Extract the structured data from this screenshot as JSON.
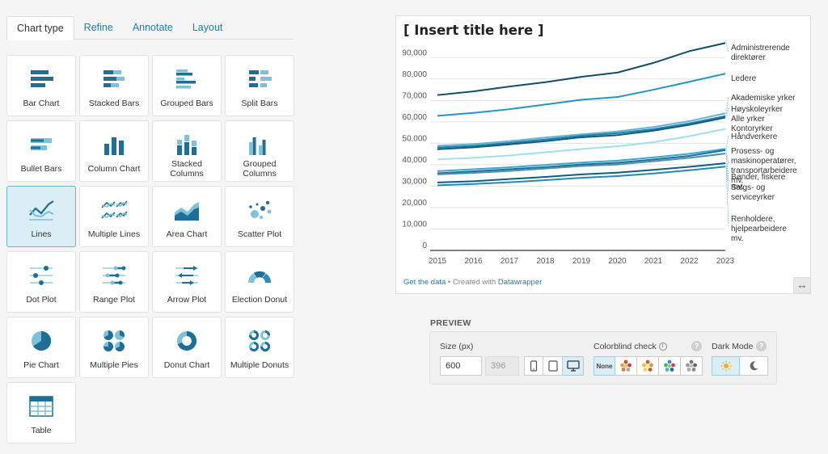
{
  "tabs": [
    {
      "label": "Chart type",
      "active": true
    },
    {
      "label": "Refine",
      "active": false
    },
    {
      "label": "Annotate",
      "active": false
    },
    {
      "label": "Layout",
      "active": false
    }
  ],
  "chart_types": [
    {
      "label": "Bar Chart",
      "icon": "bar-chart-icon"
    },
    {
      "label": "Stacked Bars",
      "icon": "stacked-bars-icon"
    },
    {
      "label": "Grouped Bars",
      "icon": "grouped-bars-icon"
    },
    {
      "label": "Split Bars",
      "icon": "split-bars-icon"
    },
    {
      "label": "Bullet Bars",
      "icon": "bullet-bars-icon"
    },
    {
      "label": "Column Chart",
      "icon": "column-chart-icon"
    },
    {
      "label": "Stacked Columns",
      "icon": "stacked-columns-icon"
    },
    {
      "label": "Grouped Columns",
      "icon": "grouped-columns-icon"
    },
    {
      "label": "Lines",
      "icon": "lines-icon",
      "selected": true
    },
    {
      "label": "Multiple Lines",
      "icon": "multiple-lines-icon"
    },
    {
      "label": "Area Chart",
      "icon": "area-chart-icon"
    },
    {
      "label": "Scatter Plot",
      "icon": "scatter-plot-icon"
    },
    {
      "label": "Dot Plot",
      "icon": "dot-plot-icon"
    },
    {
      "label": "Range Plot",
      "icon": "range-plot-icon"
    },
    {
      "label": "Arrow Plot",
      "icon": "arrow-plot-icon"
    },
    {
      "label": "Election Donut",
      "icon": "election-donut-icon"
    },
    {
      "label": "Pie Chart",
      "icon": "pie-chart-icon"
    },
    {
      "label": "Multiple Pies",
      "icon": "multiple-pies-icon"
    },
    {
      "label": "Donut Chart",
      "icon": "donut-chart-icon"
    },
    {
      "label": "Multiple Donuts",
      "icon": "multiple-donuts-icon"
    },
    {
      "label": "Table",
      "icon": "table-icon"
    }
  ],
  "chart_preview": {
    "title": "[ Insert title here ]",
    "footer_link": "Get the data",
    "footer_text": " • Created with ",
    "footer_brand": "Datawrapper"
  },
  "chart_data": {
    "type": "line",
    "title": "[ Insert title here ]",
    "x": [
      2015,
      2016,
      2017,
      2018,
      2019,
      2020,
      2021,
      2022,
      2023
    ],
    "ylim": [
      0,
      95000
    ],
    "yticks": [
      0,
      10000,
      20000,
      30000,
      40000,
      50000,
      60000,
      70000,
      80000,
      90000
    ],
    "ytick_labels": [
      "0",
      "10,000",
      "20,000",
      "30,000",
      "40,000",
      "50,000",
      "60,000",
      "70,000",
      "80,000",
      "90,000"
    ],
    "grid": true,
    "series": [
      {
        "name": "Administrerende direktører",
        "label_lines": [
          "Administrerende",
          "direktører"
        ],
        "color": "#0b4f6c",
        "values": [
          72500,
          74200,
          76500,
          78500,
          81000,
          83000,
          87500,
          93000,
          96800
        ]
      },
      {
        "name": "Ledere",
        "label_lines": [
          "Ledere"
        ],
        "color": "#2196c6",
        "values": [
          62800,
          64200,
          65900,
          68100,
          70300,
          71600,
          75000,
          78700,
          82500
        ]
      },
      {
        "name": "Akademiske yrker",
        "label_lines": [
          "Akademiske yrker"
        ],
        "color": "#5fb4d6",
        "values": [
          48800,
          49600,
          51000,
          52700,
          54200,
          55500,
          57600,
          60300,
          64000
        ]
      },
      {
        "name": "Høyskoleyrker",
        "label_lines": [
          "Høyskoleyrker"
        ],
        "color": "#1f80aa",
        "values": [
          48000,
          48800,
          50200,
          51800,
          53500,
          54700,
          56600,
          59300,
          62700
        ]
      },
      {
        "name": "Alle yrker",
        "label_lines": [
          "Alle yrker"
        ],
        "color": "#0e5a80",
        "values": [
          47200,
          48100,
          49500,
          51000,
          52800,
          53800,
          55900,
          58600,
          62000
        ]
      },
      {
        "name": "Kontoryrker",
        "label_lines": [
          "Kontoryrker"
        ],
        "color": "#9fe0ee",
        "values": [
          42500,
          43200,
          44300,
          45800,
          47300,
          48600,
          50500,
          53300,
          56700
        ]
      },
      {
        "name": "Håndverkere",
        "label_lines": [
          "Håndverkere"
        ],
        "color": "#3aa7cf",
        "values": [
          37000,
          37900,
          38800,
          39900,
          41000,
          41900,
          43400,
          45100,
          47400
        ]
      },
      {
        "name": "Prosess- og maskinoperatører, transportarbeidere mv.",
        "label_lines": [
          "Prosess- og",
          "maskinoperatører,",
          "transportarbeidere",
          "mv."
        ],
        "color": "#1b6f96",
        "values": [
          36000,
          36900,
          37900,
          38900,
          40100,
          40900,
          42400,
          44100,
          46800
        ]
      },
      {
        "name": "Bønder, fiskere mv.",
        "label_lines": [
          "Bønder, fiskere",
          "mv."
        ],
        "color": "#4d8fb0",
        "values": [
          35500,
          36200,
          37100,
          38200,
          39400,
          40100,
          41600,
          43200,
          45200
        ]
      },
      {
        "name": "Salgs- og serviceyrker",
        "label_lines": [
          "Salgs- og",
          "serviceyrker"
        ],
        "color": "#0b5e85",
        "values": [
          31700,
          32300,
          33300,
          34300,
          35500,
          36300,
          37600,
          39000,
          40700
        ]
      },
      {
        "name": "Renholdere, hjelpearbeidere mv.",
        "label_lines": [
          "Renholdere,",
          "hjelpearbeidere",
          "mv."
        ],
        "color": "#2489b5",
        "values": [
          30400,
          31000,
          31800,
          32800,
          33900,
          34700,
          35900,
          37400,
          39100
        ]
      }
    ]
  },
  "preview": {
    "heading": "PREVIEW",
    "size_label": "Size (px)",
    "width_value": "600",
    "height_value": "396",
    "colorblind_label": "Colorblind check",
    "colorblind_none": "None",
    "dark_mode_label": "Dark Mode",
    "help_symbol": "?"
  }
}
